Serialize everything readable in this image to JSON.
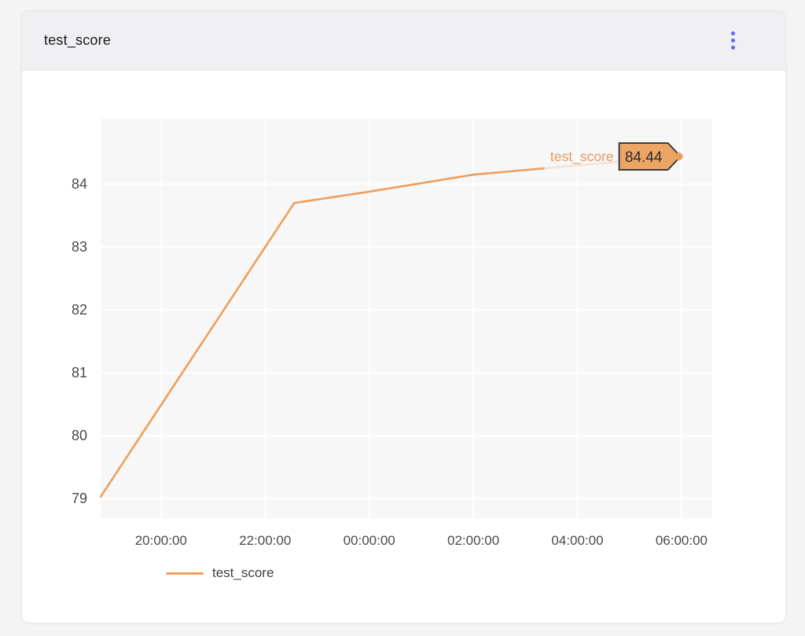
{
  "header": {
    "title": "test_score",
    "menu_icon": "kebab-vertical-icon",
    "menu_color": "#5f69f0"
  },
  "chart_data": {
    "type": "line",
    "title": "test_score",
    "xlabel": "",
    "ylabel": "",
    "grid": true,
    "legend_position": "bottom",
    "x_ticks": [
      {
        "hour": 20,
        "label": "20:00:00"
      },
      {
        "hour": 22,
        "label": "22:00:00"
      },
      {
        "hour": 24,
        "label": "00:00:00"
      },
      {
        "hour": 26,
        "label": "02:00:00"
      },
      {
        "hour": 28,
        "label": "04:00:00"
      },
      {
        "hour": 30,
        "label": "06:00:00"
      }
    ],
    "y_ticks": [
      79,
      80,
      81,
      82,
      83,
      84
    ],
    "x_domain_hours": [
      18.84,
      30.59
    ],
    "y_domain": [
      78.69,
      85.04
    ],
    "series": [
      {
        "name": "test_score",
        "color": "#ec9f5e",
        "points": [
          {
            "time": "18:50:00",
            "hour": 18.84,
            "value": 79.03
          },
          {
            "time": "22:34:00",
            "hour": 22.56,
            "value": 83.7
          },
          {
            "time": "00:00:00",
            "hour": 24.0,
            "value": 83.88
          },
          {
            "time": "02:00:00",
            "hour": 26.0,
            "value": 84.15
          },
          {
            "time": "03:21:00",
            "hour": 27.35,
            "value": 84.25
          },
          {
            "time": "05:55:00",
            "hour": 29.92,
            "value": 84.44
          }
        ],
        "fade_from_index": 4,
        "end_label": {
          "series_text": "test_score",
          "value_text": "84.44",
          "badge_fill": "#eda566",
          "badge_border": "#3d3d3d",
          "value_color": "#2e2e2e",
          "series_text_color": "#e8995c"
        }
      }
    ],
    "legend": [
      {
        "label": "test_score",
        "color": "#ec9f5e"
      }
    ],
    "colors": {
      "panel_bg": "#f7f7f8",
      "grid_line": "#ffffff",
      "tick_text": "#4a4a4a"
    }
  }
}
